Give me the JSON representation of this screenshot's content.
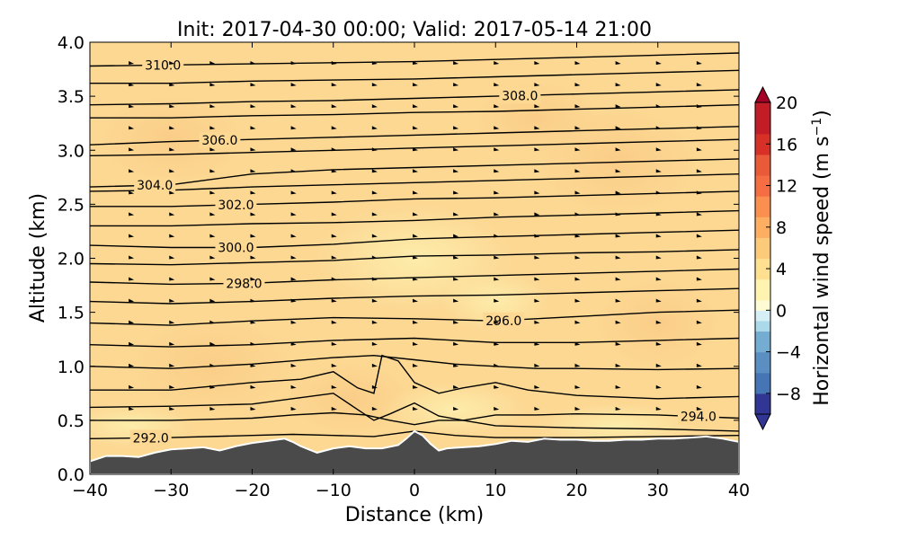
{
  "chart_data": {
    "type": "cross-section",
    "title": "Init: 2017-04-30 00:00; Valid: 2017-05-14 21:00",
    "xlabel": "Distance (km)",
    "ylabel": "Altitude (km)",
    "xlim": [
      -40,
      40
    ],
    "ylim": [
      0,
      4
    ],
    "x_ticks": [
      "−40",
      "−30",
      "−20",
      "−10",
      "0",
      "10",
      "20",
      "30",
      "40"
    ],
    "y_ticks": [
      "0.0",
      "0.5",
      "1.0",
      "1.5",
      "2.0",
      "2.5",
      "3.0",
      "3.5",
      "4.0"
    ],
    "colorbar": {
      "label": "Horizontal wind speed (m s",
      "label_sup": "−1",
      "label_end": ")",
      "range": [
        -10,
        20
      ],
      "ticks": [
        "−8",
        "−4",
        "0",
        "4",
        "8",
        "12",
        "16",
        "20"
      ],
      "tick_values": [
        -8,
        -4,
        0,
        4,
        8,
        12,
        16,
        20
      ],
      "extend": "both",
      "colormap": "RdYlBu_r"
    },
    "fill_color_typical": "#fcd893",
    "terrain_color": "#4a4a4a",
    "terrain": {
      "x": [
        -40,
        -38,
        -36,
        -34,
        -32,
        -30,
        -28,
        -26,
        -24,
        -22,
        -20,
        -18,
        -16,
        -15,
        -14,
        -12,
        -10,
        -8,
        -6,
        -4,
        -2,
        -1,
        0,
        1,
        2,
        3,
        4,
        6,
        8,
        10,
        12,
        14,
        16,
        18,
        20,
        22,
        24,
        26,
        28,
        30,
        32,
        34,
        36,
        38,
        40
      ],
      "y": [
        0.12,
        0.17,
        0.17,
        0.16,
        0.2,
        0.23,
        0.24,
        0.25,
        0.22,
        0.26,
        0.29,
        0.31,
        0.33,
        0.3,
        0.26,
        0.2,
        0.24,
        0.26,
        0.24,
        0.24,
        0.27,
        0.33,
        0.4,
        0.36,
        0.28,
        0.22,
        0.24,
        0.25,
        0.26,
        0.28,
        0.31,
        0.3,
        0.33,
        0.32,
        0.32,
        0.31,
        0.31,
        0.32,
        0.32,
        0.33,
        0.33,
        0.34,
        0.35,
        0.33,
        0.3
      ]
    },
    "isentropes": [
      {
        "value": 292.0,
        "label": "292.0",
        "label_x": -32.5,
        "x": [
          -40,
          -30,
          -20,
          -15,
          -10,
          -5,
          0,
          5,
          10,
          20,
          30,
          40
        ],
        "y": [
          0.33,
          0.34,
          0.36,
          0.37,
          0.36,
          0.35,
          0.4,
          0.36,
          0.34,
          0.34,
          0.35,
          0.36
        ]
      },
      {
        "value": 293.0,
        "label": "",
        "x": [
          -40,
          -30,
          -20,
          -15,
          -10,
          -6,
          -3,
          0,
          3,
          6,
          10,
          20,
          30,
          40
        ],
        "y": [
          0.5,
          0.5,
          0.52,
          0.55,
          0.57,
          0.55,
          0.5,
          0.46,
          0.5,
          0.5,
          0.45,
          0.43,
          0.42,
          0.4
        ]
      },
      {
        "value": 294.0,
        "label": "294.0",
        "label_x": 35,
        "x": [
          -40,
          -30,
          -20,
          -15,
          -10,
          -7,
          -5,
          -3,
          0,
          3,
          6,
          10,
          15,
          20,
          30,
          40
        ],
        "y": [
          0.62,
          0.63,
          0.65,
          0.7,
          0.75,
          0.6,
          0.5,
          0.56,
          0.66,
          0.54,
          0.5,
          0.55,
          0.55,
          0.56,
          0.55,
          0.52
        ]
      },
      {
        "value": 294.5,
        "label": "",
        "x": [
          -40,
          -30,
          -20,
          -14,
          -10,
          -7,
          -5,
          -4,
          -2,
          0,
          3,
          6,
          10,
          14,
          20,
          30,
          40
        ],
        "y": [
          0.78,
          0.78,
          0.85,
          0.88,
          0.95,
          0.8,
          0.75,
          1.1,
          1.05,
          0.85,
          0.75,
          0.8,
          0.85,
          0.78,
          0.73,
          0.7,
          0.72
        ]
      },
      {
        "value": 295.0,
        "label": "",
        "x": [
          -40,
          -30,
          -20,
          -10,
          -5,
          0,
          5,
          10,
          15,
          20,
          30,
          40
        ],
        "y": [
          1.0,
          0.98,
          1.02,
          1.08,
          1.1,
          1.06,
          1.02,
          1.0,
          0.98,
          0.98,
          0.97,
          0.98
        ]
      },
      {
        "value": 295.5,
        "label": "",
        "x": [
          -40,
          -30,
          -20,
          -10,
          0,
          10,
          20,
          30,
          40
        ],
        "y": [
          1.2,
          1.18,
          1.2,
          1.24,
          1.26,
          1.22,
          1.22,
          1.24,
          1.26
        ]
      },
      {
        "value": 296.0,
        "label": "296.0",
        "label_x": 11,
        "x": [
          -40,
          -30,
          -20,
          -10,
          0,
          10,
          20,
          30,
          40
        ],
        "y": [
          1.4,
          1.38,
          1.42,
          1.45,
          1.44,
          1.42,
          1.46,
          1.5,
          1.52
        ]
      },
      {
        "value": 297.0,
        "label": "",
        "x": [
          -40,
          -30,
          -20,
          -10,
          0,
          10,
          20,
          30,
          40
        ],
        "y": [
          1.6,
          1.58,
          1.6,
          1.63,
          1.65,
          1.66,
          1.68,
          1.7,
          1.72
        ]
      },
      {
        "value": 298.0,
        "label": "298.0",
        "label_x": -21,
        "x": [
          -40,
          -30,
          -20,
          -10,
          0,
          10,
          20,
          30,
          40
        ],
        "y": [
          1.78,
          1.76,
          1.77,
          1.8,
          1.82,
          1.84,
          1.86,
          1.88,
          1.9
        ]
      },
      {
        "value": 299.0,
        "label": "",
        "x": [
          -40,
          -30,
          -20,
          -10,
          0,
          10,
          20,
          30,
          40
        ],
        "y": [
          1.95,
          1.94,
          1.96,
          1.98,
          2.02,
          2.03,
          2.05,
          2.06,
          2.08
        ]
      },
      {
        "value": 300.0,
        "label": "300.0",
        "label_x": -22,
        "x": [
          -40,
          -30,
          -20,
          -10,
          0,
          10,
          20,
          30,
          40
        ],
        "y": [
          2.12,
          2.1,
          2.1,
          2.13,
          2.18,
          2.2,
          2.22,
          2.24,
          2.26
        ]
      },
      {
        "value": 301.0,
        "label": "",
        "x": [
          -40,
          -30,
          -20,
          -10,
          0,
          10,
          20,
          30,
          40
        ],
        "y": [
          2.3,
          2.3,
          2.32,
          2.33,
          2.35,
          2.38,
          2.4,
          2.42,
          2.44
        ]
      },
      {
        "value": 302.0,
        "label": "302.0",
        "label_x": -22,
        "x": [
          -40,
          -30,
          -20,
          -10,
          0,
          10,
          20,
          30,
          40
        ],
        "y": [
          2.48,
          2.48,
          2.5,
          2.52,
          2.55,
          2.56,
          2.58,
          2.6,
          2.62
        ]
      },
      {
        "value": 303.0,
        "label": "",
        "x": [
          -40,
          -30,
          -20,
          -10,
          0,
          10,
          20,
          30,
          40
        ],
        "y": [
          2.62,
          2.63,
          2.66,
          2.68,
          2.7,
          2.72,
          2.74,
          2.76,
          2.78
        ]
      },
      {
        "value": 304.0,
        "label": "304.0",
        "label_x": -32,
        "x": [
          -40,
          -30,
          -20,
          -10,
          0,
          10,
          20,
          30,
          40
        ],
        "y": [
          2.66,
          2.68,
          2.78,
          2.82,
          2.84,
          2.86,
          2.88,
          2.9,
          2.92
        ]
      },
      {
        "value": 305.0,
        "label": "",
        "x": [
          -40,
          -30,
          -20,
          -10,
          0,
          10,
          20,
          30,
          40
        ],
        "y": [
          2.95,
          2.96,
          2.98,
          3.0,
          3.02,
          3.04,
          3.06,
          3.08,
          3.1
        ]
      },
      {
        "value": 306.0,
        "label": "306.0",
        "label_x": -24,
        "x": [
          -40,
          -30,
          -20,
          -10,
          0,
          10,
          20,
          30,
          40
        ],
        "y": [
          3.05,
          3.08,
          3.1,
          3.12,
          3.14,
          3.16,
          3.18,
          3.2,
          3.22
        ]
      },
      {
        "value": 307.0,
        "label": "",
        "x": [
          -40,
          -30,
          -20,
          -10,
          0,
          10,
          20,
          30,
          40
        ],
        "y": [
          3.3,
          3.3,
          3.32,
          3.33,
          3.35,
          3.36,
          3.38,
          3.4,
          3.42
        ]
      },
      {
        "value": 308.0,
        "label": "308.0",
        "label_x": 13,
        "x": [
          -40,
          -30,
          -20,
          -10,
          0,
          10,
          20,
          30,
          40
        ],
        "y": [
          3.42,
          3.43,
          3.45,
          3.46,
          3.48,
          3.5,
          3.52,
          3.54,
          3.56
        ]
      },
      {
        "value": 309.0,
        "label": "",
        "x": [
          -40,
          -30,
          -20,
          -10,
          0,
          10,
          20,
          30,
          40
        ],
        "y": [
          3.62,
          3.62,
          3.64,
          3.65,
          3.66,
          3.68,
          3.7,
          3.72,
          3.74
        ]
      },
      {
        "value": 310.0,
        "label": "310.0",
        "label_x": -31,
        "x": [
          -40,
          -30,
          -20,
          -10,
          0,
          10,
          20,
          30,
          40
        ],
        "y": [
          3.78,
          3.79,
          3.8,
          3.81,
          3.82,
          3.84,
          3.86,
          3.88,
          3.9
        ]
      }
    ],
    "wind_arrows_grid": {
      "x_start": -35,
      "x_end": 35,
      "dx": 5,
      "y_start": 0.6,
      "y_end": 3.8,
      "dy": 0.2
    }
  }
}
